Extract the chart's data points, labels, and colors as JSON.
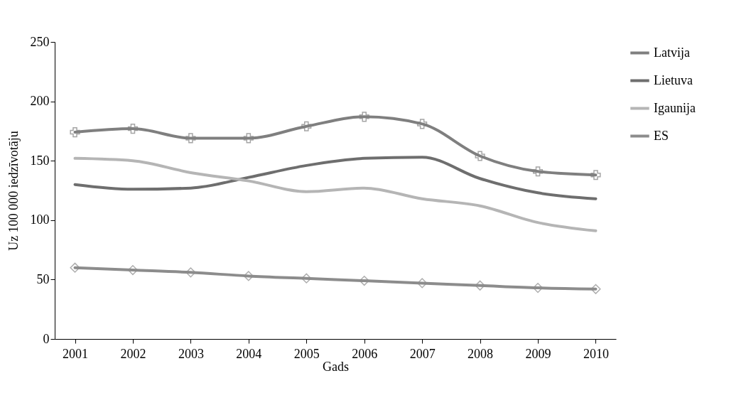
{
  "chart_data": {
    "type": "line",
    "xlabel": "Gads",
    "ylabel": "Uz 100 000 iedzīvotāju",
    "categories": [
      "2001",
      "2002",
      "2003",
      "2004",
      "2005",
      "2006",
      "2007",
      "2008",
      "2009",
      "2010"
    ],
    "ylim": [
      0,
      250
    ],
    "yticks": [
      0,
      50,
      100,
      150,
      200,
      250
    ],
    "grid": false,
    "legend": "right",
    "series": [
      {
        "name": "Latvija",
        "color": "#7f7f7f",
        "marker": "cross",
        "values": [
          174,
          177,
          169,
          169,
          179,
          187,
          181,
          154,
          141,
          138
        ]
      },
      {
        "name": "Lietuva",
        "color": "#6e6e6e",
        "marker": "none",
        "values": [
          130,
          126,
          127,
          136,
          146,
          152,
          153,
          135,
          123,
          118
        ]
      },
      {
        "name": "Igaunija",
        "color": "#b5b5b5",
        "marker": "none",
        "values": [
          152,
          150,
          140,
          133,
          124,
          127,
          118,
          112,
          98,
          91
        ]
      },
      {
        "name": "ES",
        "color": "#8c8c8c",
        "marker": "diamond",
        "values": [
          60,
          58,
          56,
          53,
          51,
          49,
          47,
          45,
          43,
          42
        ]
      }
    ]
  }
}
